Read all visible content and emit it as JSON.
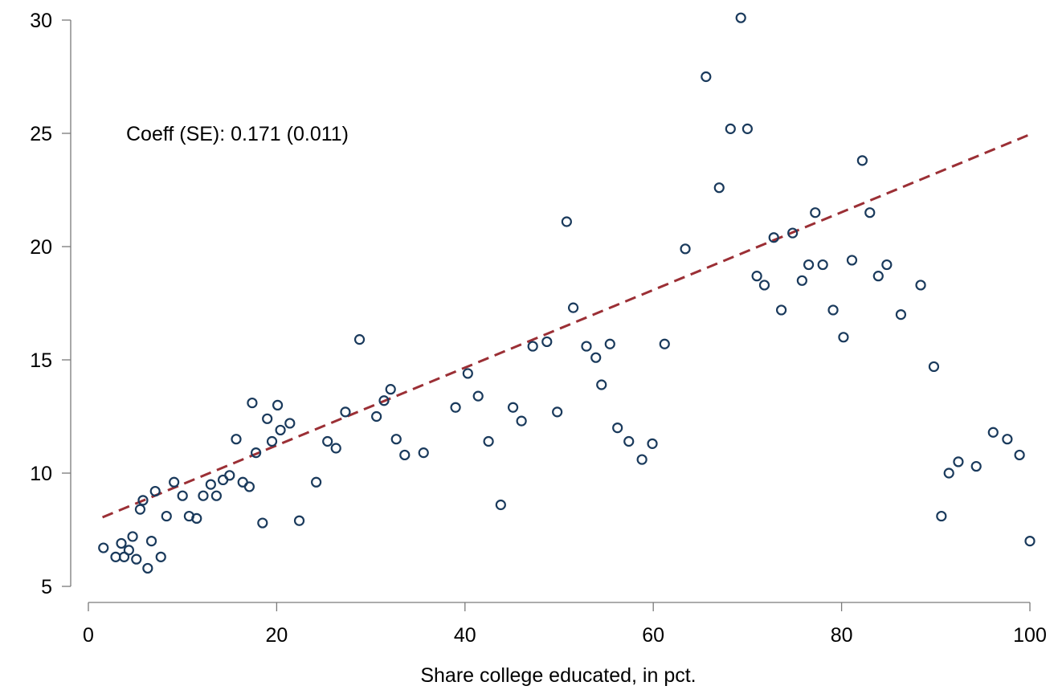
{
  "chart_data": {
    "type": "scatter",
    "title": "",
    "xlabel": "Share college educated, in pct.",
    "ylabel": "",
    "xlim": [
      0,
      100
    ],
    "ylim": [
      5,
      30
    ],
    "xticks": [
      0,
      20,
      40,
      60,
      80,
      100
    ],
    "yticks": [
      5,
      10,
      15,
      20,
      25,
      30
    ],
    "grid": false,
    "annotation": "Coeff (SE): 0.171 (0.011)",
    "fit_line": {
      "x": [
        1.5,
        100
      ],
      "y": [
        8.05,
        24.95
      ]
    },
    "points": [
      [
        1.6,
        6.7
      ],
      [
        2.9,
        6.3
      ],
      [
        3.5,
        6.9
      ],
      [
        3.8,
        6.3
      ],
      [
        4.3,
        6.6
      ],
      [
        4.7,
        7.2
      ],
      [
        5.1,
        6.2
      ],
      [
        5.5,
        8.4
      ],
      [
        5.8,
        8.8
      ],
      [
        6.3,
        5.8
      ],
      [
        6.7,
        7.0
      ],
      [
        7.1,
        9.2
      ],
      [
        7.7,
        6.3
      ],
      [
        8.3,
        8.1
      ],
      [
        9.1,
        9.6
      ],
      [
        10.0,
        9.0
      ],
      [
        10.7,
        8.1
      ],
      [
        11.5,
        8.0
      ],
      [
        12.2,
        9.0
      ],
      [
        13.0,
        9.5
      ],
      [
        13.6,
        9.0
      ],
      [
        14.3,
        9.7
      ],
      [
        15.0,
        9.9
      ],
      [
        15.7,
        11.5
      ],
      [
        16.4,
        9.6
      ],
      [
        17.1,
        9.4
      ],
      [
        17.4,
        13.1
      ],
      [
        17.8,
        10.9
      ],
      [
        18.5,
        7.8
      ],
      [
        19.0,
        12.4
      ],
      [
        19.5,
        11.4
      ],
      [
        20.1,
        13.0
      ],
      [
        20.4,
        11.9
      ],
      [
        21.4,
        12.2
      ],
      [
        22.4,
        7.9
      ],
      [
        24.2,
        9.6
      ],
      [
        25.4,
        11.4
      ],
      [
        26.3,
        11.1
      ],
      [
        27.3,
        12.7
      ],
      [
        28.8,
        15.9
      ],
      [
        30.6,
        12.5
      ],
      [
        31.4,
        13.2
      ],
      [
        32.1,
        13.7
      ],
      [
        32.7,
        11.5
      ],
      [
        33.6,
        10.8
      ],
      [
        35.6,
        10.9
      ],
      [
        39.0,
        12.9
      ],
      [
        40.3,
        14.4
      ],
      [
        41.4,
        13.4
      ],
      [
        42.5,
        11.4
      ],
      [
        43.8,
        8.6
      ],
      [
        45.1,
        12.9
      ],
      [
        46.0,
        12.3
      ],
      [
        47.2,
        15.6
      ],
      [
        48.7,
        15.8
      ],
      [
        49.8,
        12.7
      ],
      [
        50.8,
        21.1
      ],
      [
        51.5,
        17.3
      ],
      [
        52.9,
        15.6
      ],
      [
        53.9,
        15.1
      ],
      [
        54.5,
        13.9
      ],
      [
        55.4,
        15.7
      ],
      [
        56.2,
        12.0
      ],
      [
        57.4,
        11.4
      ],
      [
        58.8,
        10.6
      ],
      [
        59.9,
        11.3
      ],
      [
        61.2,
        15.7
      ],
      [
        63.4,
        19.9
      ],
      [
        65.6,
        27.5
      ],
      [
        67.0,
        22.6
      ],
      [
        68.2,
        25.2
      ],
      [
        69.3,
        30.1
      ],
      [
        70.0,
        25.2
      ],
      [
        71.0,
        18.7
      ],
      [
        71.8,
        18.3
      ],
      [
        72.8,
        20.4
      ],
      [
        73.6,
        17.2
      ],
      [
        74.8,
        20.6
      ],
      [
        75.8,
        18.5
      ],
      [
        76.5,
        19.2
      ],
      [
        77.2,
        21.5
      ],
      [
        78.0,
        19.2
      ],
      [
        79.1,
        17.2
      ],
      [
        80.2,
        16.0
      ],
      [
        81.1,
        19.4
      ],
      [
        82.2,
        23.8
      ],
      [
        83.0,
        21.5
      ],
      [
        83.9,
        18.7
      ],
      [
        84.8,
        19.2
      ],
      [
        86.3,
        17.0
      ],
      [
        88.4,
        18.3
      ],
      [
        89.8,
        14.7
      ],
      [
        90.6,
        8.1
      ],
      [
        91.4,
        10.0
      ],
      [
        92.4,
        10.5
      ],
      [
        94.3,
        10.3
      ],
      [
        96.1,
        11.8
      ],
      [
        97.6,
        11.5
      ],
      [
        98.9,
        10.8
      ],
      [
        100.0,
        7.0
      ]
    ]
  }
}
